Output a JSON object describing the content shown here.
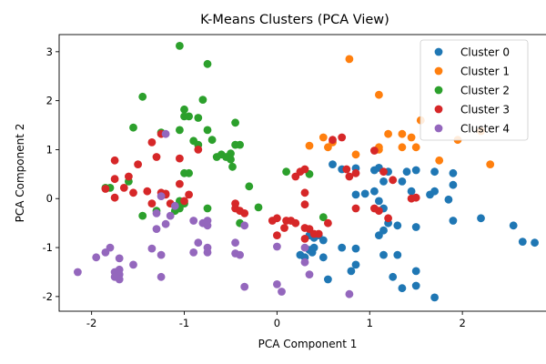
{
  "chart_data": {
    "type": "scatter",
    "title": "K-Means Clusters (PCA View)",
    "xlabel": "PCA Component 1",
    "ylabel": "PCA Component 2",
    "xlim": [
      -2.35,
      3.0
    ],
    "ylim": [
      -2.3,
      3.35
    ],
    "xticks": [
      -2,
      -1,
      0,
      1,
      2,
      3
    ],
    "yticks": [
      -2,
      -1,
      0,
      1,
      2,
      3
    ],
    "legend_position": "upper right",
    "series": [
      {
        "name": "Cluster 0",
        "color": "#1f77b4",
        "points": [
          [
            0.6,
            0.7
          ],
          [
            0.7,
            0.6
          ],
          [
            0.85,
            0.62
          ],
          [
            1.05,
            0.58
          ],
          [
            1.1,
            0.63
          ],
          [
            1.2,
            0.55
          ],
          [
            1.4,
            0.55
          ],
          [
            1.5,
            0.58
          ],
          [
            1.7,
            0.55
          ],
          [
            1.9,
            0.52
          ],
          [
            1.9,
            0.28
          ],
          [
            1.15,
            0.35
          ],
          [
            1.35,
            0.35
          ],
          [
            1.45,
            0.15
          ],
          [
            1.65,
            0.08
          ],
          [
            1.7,
            0.15
          ],
          [
            1.85,
            -0.02
          ],
          [
            0.85,
            0.08
          ],
          [
            0.95,
            0.1
          ],
          [
            1.05,
            0.15
          ],
          [
            1.1,
            -0.05
          ],
          [
            1.15,
            -0.2
          ],
          [
            1.2,
            -0.5
          ],
          [
            1.3,
            -0.55
          ],
          [
            1.1,
            -0.75
          ],
          [
            1.15,
            -0.65
          ],
          [
            1.5,
            -0.58
          ],
          [
            2.2,
            -0.4
          ],
          [
            1.9,
            -0.45
          ],
          [
            2.55,
            -0.55
          ],
          [
            2.65,
            -0.88
          ],
          [
            2.78,
            -0.9
          ],
          [
            0.25,
            -1.15
          ],
          [
            0.3,
            -1.2
          ],
          [
            0.35,
            -0.75
          ],
          [
            0.4,
            -0.8
          ],
          [
            0.45,
            -0.75
          ],
          [
            0.5,
            -0.85
          ],
          [
            0.35,
            -1.05
          ],
          [
            0.38,
            -1.1
          ],
          [
            0.4,
            -1.0
          ],
          [
            0.5,
            -1.2
          ],
          [
            0.7,
            -1.0
          ],
          [
            0.85,
            -1.02
          ],
          [
            1.15,
            -1.15
          ],
          [
            1.3,
            -1.15
          ],
          [
            0.85,
            -1.35
          ],
          [
            0.8,
            -1.48
          ],
          [
            1.5,
            -1.48
          ],
          [
            1.25,
            -1.6
          ],
          [
            0.55,
            -1.65
          ],
          [
            1.35,
            -1.83
          ],
          [
            1.5,
            -1.78
          ],
          [
            1.7,
            -2.02
          ]
        ]
      },
      {
        "name": "Cluster 1",
        "color": "#ff7f0e",
        "points": [
          [
            0.78,
            2.85
          ],
          [
            1.1,
            2.12
          ],
          [
            1.55,
            1.6
          ],
          [
            1.2,
            1.32
          ],
          [
            1.35,
            1.32
          ],
          [
            1.45,
            1.25
          ],
          [
            0.5,
            1.25
          ],
          [
            0.6,
            1.15
          ],
          [
            0.35,
            1.08
          ],
          [
            0.55,
            1.05
          ],
          [
            0.85,
            0.9
          ],
          [
            1.1,
            1.05
          ],
          [
            1.1,
            1.0
          ],
          [
            1.35,
            1.05
          ],
          [
            1.5,
            1.05
          ],
          [
            1.75,
            0.78
          ],
          [
            1.95,
            1.2
          ],
          [
            2.2,
            1.38
          ],
          [
            2.3,
            0.7
          ]
        ]
      },
      {
        "name": "Cluster 2",
        "color": "#2ca02c",
        "points": [
          [
            -1.05,
            3.12
          ],
          [
            -0.75,
            2.75
          ],
          [
            -1.45,
            2.08
          ],
          [
            -0.8,
            2.02
          ],
          [
            -1.0,
            1.82
          ],
          [
            -1.0,
            1.68
          ],
          [
            -0.95,
            1.68
          ],
          [
            -0.85,
            1.65
          ],
          [
            -1.55,
            1.45
          ],
          [
            -1.25,
            1.35
          ],
          [
            -1.05,
            1.4
          ],
          [
            -0.75,
            1.4
          ],
          [
            -0.45,
            1.55
          ],
          [
            -0.9,
            1.18
          ],
          [
            -0.85,
            1.1
          ],
          [
            -0.7,
            1.2
          ],
          [
            -0.45,
            1.1
          ],
          [
            -0.4,
            1.1
          ],
          [
            -0.65,
            0.85
          ],
          [
            -0.6,
            0.9
          ],
          [
            -0.55,
            0.85
          ],
          [
            -0.5,
            0.8
          ],
          [
            -0.5,
            0.92
          ],
          [
            -0.48,
            0.65
          ],
          [
            -1.0,
            0.52
          ],
          [
            -0.95,
            0.52
          ],
          [
            -1.6,
            0.35
          ],
          [
            -0.3,
            0.25
          ],
          [
            -1.85,
            0.22
          ],
          [
            -1.8,
            0.22
          ],
          [
            0.1,
            0.55
          ],
          [
            0.35,
            0.5
          ],
          [
            -1.05,
            -0.05
          ],
          [
            -1.05,
            -0.2
          ],
          [
            -1.0,
            -0.1
          ],
          [
            -1.1,
            -0.25
          ],
          [
            -1.3,
            -0.25
          ],
          [
            -1.45,
            -0.35
          ],
          [
            -0.75,
            -0.2
          ],
          [
            -0.2,
            -0.18
          ],
          [
            -0.4,
            -0.5
          ],
          [
            0.5,
            -0.38
          ]
        ]
      },
      {
        "name": "Cluster 3",
        "color": "#d62728",
        "points": [
          [
            -1.25,
            1.32
          ],
          [
            -1.35,
            1.15
          ],
          [
            -1.05,
            0.82
          ],
          [
            -1.3,
            0.85
          ],
          [
            -0.85,
            1.0
          ],
          [
            -1.5,
            0.7
          ],
          [
            -1.75,
            0.78
          ],
          [
            -1.6,
            0.45
          ],
          [
            -1.75,
            0.4
          ],
          [
            -1.85,
            0.2
          ],
          [
            -1.65,
            0.22
          ],
          [
            -1.55,
            0.12
          ],
          [
            -1.75,
            0.02
          ],
          [
            -1.4,
            0.15
          ],
          [
            -1.25,
            0.12
          ],
          [
            -1.2,
            0.1
          ],
          [
            -1.2,
            0.08
          ],
          [
            -1.05,
            0.3
          ],
          [
            -0.95,
            0.08
          ],
          [
            -1.35,
            -0.1
          ],
          [
            -1.15,
            -0.1
          ],
          [
            -1.0,
            -0.05
          ],
          [
            -0.45,
            -0.1
          ],
          [
            -0.45,
            -0.2
          ],
          [
            -0.35,
            -0.3
          ],
          [
            -0.4,
            -0.25
          ],
          [
            -0.05,
            -0.45
          ],
          [
            0.0,
            -0.4
          ],
          [
            0.1,
            -0.45
          ],
          [
            0.2,
            -0.5
          ],
          [
            0.15,
            -0.45
          ],
          [
            0.08,
            -0.6
          ],
          [
            0.3,
            -0.6
          ],
          [
            0.35,
            -0.62
          ],
          [
            0.3,
            -0.82
          ],
          [
            0.4,
            -0.72
          ],
          [
            0.45,
            -0.72
          ],
          [
            0.55,
            -0.5
          ],
          [
            0.0,
            -0.75
          ],
          [
            0.25,
            0.55
          ],
          [
            0.3,
            0.6
          ],
          [
            0.2,
            0.45
          ],
          [
            0.3,
            0.12
          ],
          [
            0.3,
            -0.12
          ],
          [
            0.6,
            1.2
          ],
          [
            0.7,
            1.25
          ],
          [
            0.75,
            0.6
          ],
          [
            0.85,
            0.52
          ],
          [
            0.78,
            0.45
          ],
          [
            1.05,
            0.98
          ],
          [
            1.15,
            0.55
          ],
          [
            1.25,
            0.38
          ],
          [
            1.05,
            -0.2
          ],
          [
            1.1,
            -0.25
          ],
          [
            0.85,
            -0.2
          ],
          [
            1.2,
            -0.4
          ],
          [
            1.45,
            0.0
          ],
          [
            1.5,
            0.02
          ]
        ]
      },
      {
        "name": "Cluster 4",
        "color": "#9467bd",
        "points": [
          [
            -1.2,
            1.32
          ],
          [
            -1.25,
            0.05
          ],
          [
            -1.1,
            -0.15
          ],
          [
            -1.15,
            -0.35
          ],
          [
            -1.3,
            -0.3
          ],
          [
            -1.2,
            -0.52
          ],
          [
            -1.3,
            -0.62
          ],
          [
            -0.9,
            -0.45
          ],
          [
            -0.8,
            -0.5
          ],
          [
            -0.75,
            -0.45
          ],
          [
            -0.75,
            -0.55
          ],
          [
            -0.35,
            -0.55
          ],
          [
            -0.85,
            -0.9
          ],
          [
            -0.75,
            -1.0
          ],
          [
            -0.75,
            -1.1
          ],
          [
            -0.9,
            -1.1
          ],
          [
            -0.45,
            -0.9
          ],
          [
            -0.45,
            -1.12
          ],
          [
            -0.4,
            -1.15
          ],
          [
            -1.35,
            -1.02
          ],
          [
            -1.25,
            -1.15
          ],
          [
            -1.55,
            -1.35
          ],
          [
            -1.8,
            -1.0
          ],
          [
            -1.85,
            -1.1
          ],
          [
            -1.95,
            -1.2
          ],
          [
            -1.7,
            -1.22
          ],
          [
            -1.7,
            -1.45
          ],
          [
            -1.75,
            -1.5
          ],
          [
            -1.7,
            -1.55
          ],
          [
            -1.75,
            -1.6
          ],
          [
            -1.7,
            -1.65
          ],
          [
            -1.25,
            -1.6
          ],
          [
            -2.15,
            -1.5
          ],
          [
            -0.35,
            -1.8
          ],
          [
            0.0,
            -0.98
          ],
          [
            0.0,
            -1.75
          ],
          [
            0.05,
            -1.9
          ],
          [
            0.35,
            -1.55
          ],
          [
            0.3,
            -1.3
          ],
          [
            0.3,
            -1.0
          ],
          [
            0.78,
            -1.95
          ]
        ]
      }
    ]
  }
}
